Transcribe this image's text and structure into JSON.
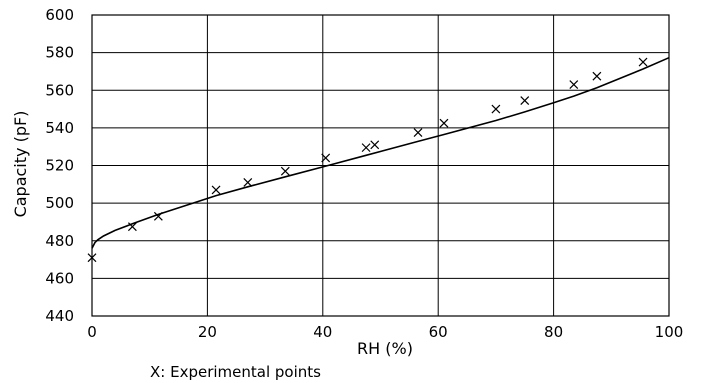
{
  "chart_data": {
    "type": "scatter",
    "title": "",
    "xlabel": "RH (%)",
    "ylabel": "Capacity (pF)",
    "xlim": [
      0,
      100
    ],
    "ylim": [
      440,
      600
    ],
    "x_ticks": [
      0,
      20,
      40,
      60,
      80,
      100
    ],
    "y_ticks": [
      440,
      460,
      480,
      500,
      520,
      540,
      560,
      580,
      600
    ],
    "grid": true,
    "marker": "x",
    "annotation": "X: Experimental points",
    "series": [
      {
        "type": "scatter",
        "x": [
          0,
          7,
          11.5,
          21.5,
          27,
          33.5,
          40.5,
          47.5,
          49,
          56.5,
          61,
          70,
          75,
          83.5,
          87.5,
          95.5
        ],
        "y": [
          471,
          487.5,
          493,
          507,
          511,
          517,
          524,
          529.5,
          531,
          537.5,
          542.5,
          550,
          554.5,
          563,
          567.5,
          575
        ]
      },
      {
        "type": "line",
        "x": [
          0,
          0.5,
          1,
          2,
          4,
          7,
          11.5,
          21.5,
          27,
          33.5,
          40.5,
          47.5,
          56.5,
          61,
          70,
          75,
          80,
          83.5,
          87.5,
          95.5,
          100
        ],
        "y": [
          476,
          479,
          480.5,
          482.5,
          485.5,
          489,
          494,
          504,
          508.7,
          514,
          519.7,
          525.4,
          532.8,
          536.5,
          543.9,
          548.5,
          553.4,
          556.9,
          561.3,
          571.3,
          577.3
        ]
      }
    ]
  }
}
